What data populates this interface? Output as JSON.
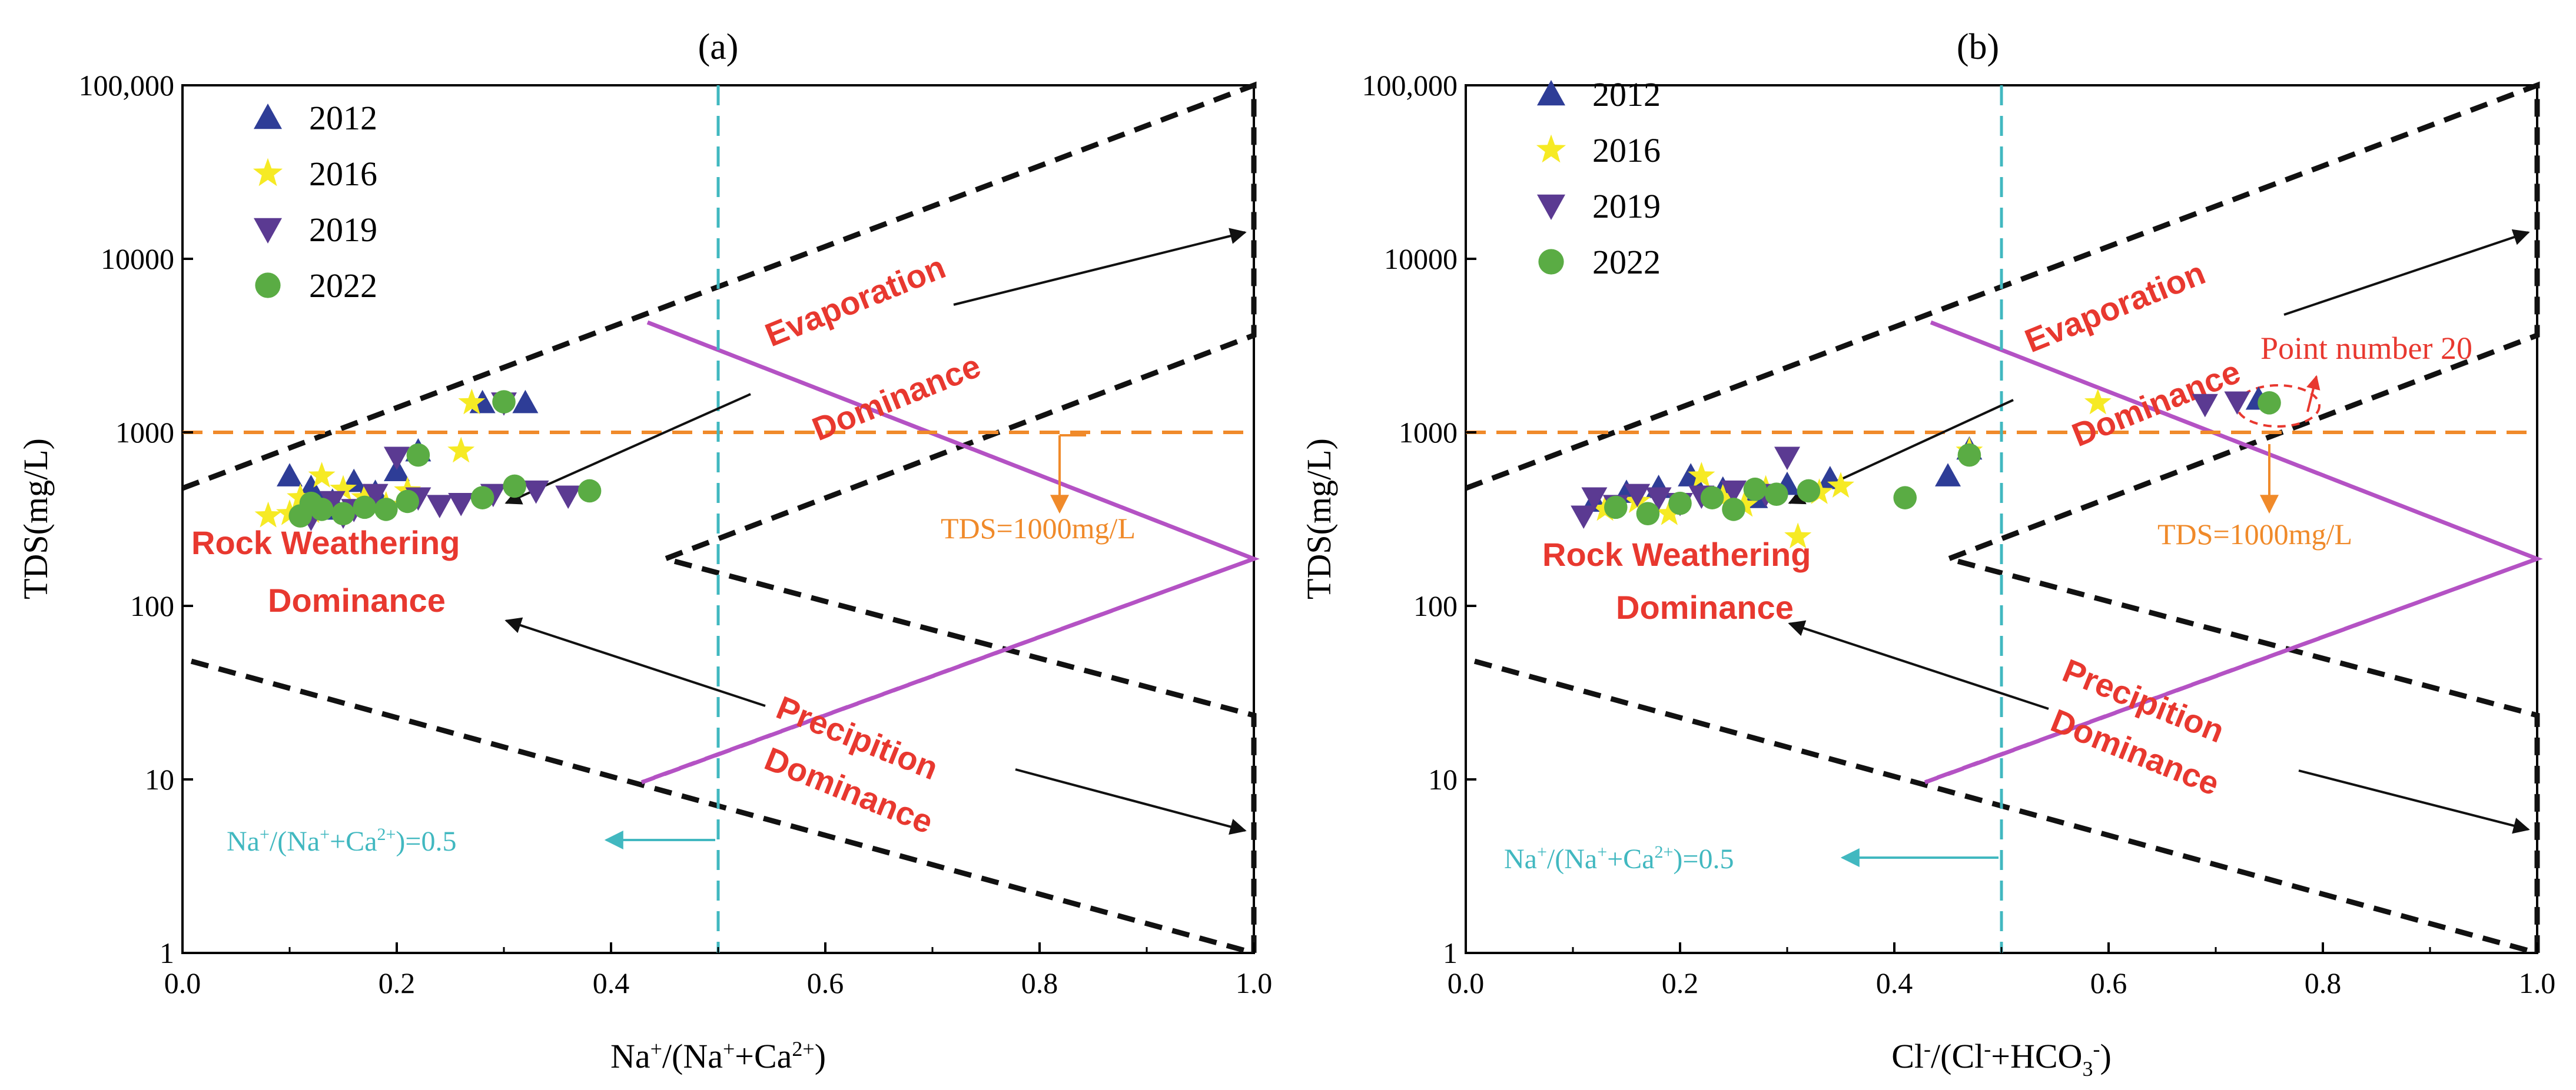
{
  "chart_data": [
    {
      "type": "scatter",
      "panel_label": "(a)",
      "xlabel": "Na+/(Na++Ca2+)",
      "ylabel": "TDS(mg/L)",
      "x_scale": "linear",
      "y_scale": "log",
      "xlim": [
        0,
        1
      ],
      "ylim": [
        1,
        100000
      ],
      "x_ticks": [
        "0.0",
        "0.2",
        "0.4",
        "0.6",
        "0.8",
        "1.0"
      ],
      "y_ticks": [
        "1",
        "10",
        "100",
        "1000",
        "10000",
        "100,000"
      ],
      "legend": [
        "2012",
        "2016",
        "2019",
        "2022"
      ],
      "legend_position": "top-left",
      "series": [
        {
          "name": "2012",
          "marker": "triangle-up",
          "color": "#2e3d97",
          "points": [
            [
              0.1,
              560
            ],
            [
              0.12,
              480
            ],
            [
              0.14,
              400
            ],
            [
              0.16,
              520
            ],
            [
              0.18,
              450
            ],
            [
              0.2,
              600
            ],
            [
              0.22,
              780
            ],
            [
              0.13,
              360
            ],
            [
              0.17,
              420
            ],
            [
              0.28,
              1480
            ],
            [
              0.32,
              1480
            ]
          ]
        },
        {
          "name": "2016",
          "marker": "star",
          "color": "#f6ea24",
          "points": [
            [
              0.08,
              330
            ],
            [
              0.1,
              340
            ],
            [
              0.12,
              350
            ],
            [
              0.13,
              560
            ],
            [
              0.15,
              470
            ],
            [
              0.17,
              420
            ],
            [
              0.19,
              380
            ],
            [
              0.21,
              460
            ],
            [
              0.26,
              780
            ],
            [
              0.27,
              1480
            ],
            [
              0.11,
              420
            ],
            [
              0.14,
              360
            ]
          ]
        },
        {
          "name": "2019",
          "marker": "triangle-down",
          "color": "#5b3a92",
          "points": [
            [
              0.12,
              320
            ],
            [
              0.14,
              400
            ],
            [
              0.16,
              360
            ],
            [
              0.18,
              440
            ],
            [
              0.2,
              720
            ],
            [
              0.22,
              420
            ],
            [
              0.24,
              380
            ],
            [
              0.26,
              390
            ],
            [
              0.29,
              440
            ],
            [
              0.3,
              1480
            ],
            [
              0.33,
              460
            ],
            [
              0.36,
              430
            ],
            [
              0.15,
              330
            ]
          ]
        },
        {
          "name": "2022",
          "marker": "circle",
          "color": "#5aac44",
          "points": [
            [
              0.11,
              330
            ],
            [
              0.13,
              360
            ],
            [
              0.15,
              340
            ],
            [
              0.17,
              370
            ],
            [
              0.19,
              360
            ],
            [
              0.21,
              400
            ],
            [
              0.22,
              740
            ],
            [
              0.28,
              420
            ],
            [
              0.3,
              1500
            ],
            [
              0.31,
              490
            ],
            [
              0.38,
              460
            ],
            [
              0.12,
              390
            ]
          ]
        }
      ],
      "annotations": {
        "evaporation": "Evaporation",
        "evaporation2": "Dominance",
        "rock": "Rock  Weathering",
        "rock2": "Dominance",
        "precip": "Precipition",
        "precip2": "Dominance",
        "tds_line": "TDS=1000mg/L",
        "ratio_line": "Na+/(Na++Ca2+)=0.5"
      }
    },
    {
      "type": "scatter",
      "panel_label": "(b)",
      "xlabel": "Cl-/(Cl-+HCO3-)",
      "ylabel": "TDS(mg/L)",
      "x_scale": "linear",
      "y_scale": "log",
      "xlim": [
        0,
        1
      ],
      "ylim": [
        1,
        100000
      ],
      "x_ticks": [
        "0.0",
        "0.2",
        "0.4",
        "0.6",
        "0.8",
        "1.0"
      ],
      "y_ticks": [
        "1",
        "10",
        "100",
        "1000",
        "10000",
        "100,000"
      ],
      "legend": [
        "2012",
        "2016",
        "2019",
        "2022"
      ],
      "legend_position": "top-left",
      "series": [
        {
          "name": "2012",
          "marker": "triangle-up",
          "color": "#2e3d97",
          "points": [
            [
              0.12,
              400
            ],
            [
              0.15,
              450
            ],
            [
              0.18,
              480
            ],
            [
              0.21,
              560
            ],
            [
              0.24,
              470
            ],
            [
              0.27,
              420
            ],
            [
              0.3,
              500
            ],
            [
              0.34,
              540
            ],
            [
              0.45,
              560
            ],
            [
              0.47,
              800
            ],
            [
              0.74,
              1550
            ]
          ]
        },
        {
          "name": "2016",
          "marker": "star",
          "color": "#f6ea24",
          "points": [
            [
              0.13,
              360
            ],
            [
              0.16,
              400
            ],
            [
              0.19,
              340
            ],
            [
              0.22,
              560
            ],
            [
              0.24,
              420
            ],
            [
              0.26,
              380
            ],
            [
              0.28,
              470
            ],
            [
              0.31,
              250
            ],
            [
              0.33,
              450
            ],
            [
              0.35,
              490
            ],
            [
              0.47,
              780
            ],
            [
              0.59,
              1480
            ]
          ]
        },
        {
          "name": "2019",
          "marker": "triangle-down",
          "color": "#5b3a92",
          "points": [
            [
              0.11,
              330
            ],
            [
              0.12,
              420
            ],
            [
              0.14,
              380
            ],
            [
              0.16,
              440
            ],
            [
              0.18,
              420
            ],
            [
              0.2,
              390
            ],
            [
              0.22,
              430
            ],
            [
              0.25,
              460
            ],
            [
              0.28,
              440
            ],
            [
              0.3,
              720
            ],
            [
              0.69,
              1450
            ],
            [
              0.72,
              1500
            ]
          ]
        },
        {
          "name": "2022",
          "marker": "circle",
          "color": "#5aac44",
          "points": [
            [
              0.14,
              370
            ],
            [
              0.17,
              340
            ],
            [
              0.2,
              390
            ],
            [
              0.23,
              420
            ],
            [
              0.25,
              360
            ],
            [
              0.27,
              470
            ],
            [
              0.29,
              440
            ],
            [
              0.32,
              460
            ],
            [
              0.41,
              420
            ],
            [
              0.47,
              740
            ],
            [
              0.75,
              1480
            ]
          ]
        }
      ],
      "annotations": {
        "evaporation": "Evaporation",
        "evaporation2": "Dominance",
        "rock": "Rock  Weathering",
        "rock2": "Dominance",
        "precip": "Precipition",
        "precip2": "Dominance",
        "tds_line": "TDS=1000mg/L",
        "ratio_line": "Na+/(Na++Ca2+)=0.5",
        "point_note": "Point number 20"
      }
    }
  ]
}
